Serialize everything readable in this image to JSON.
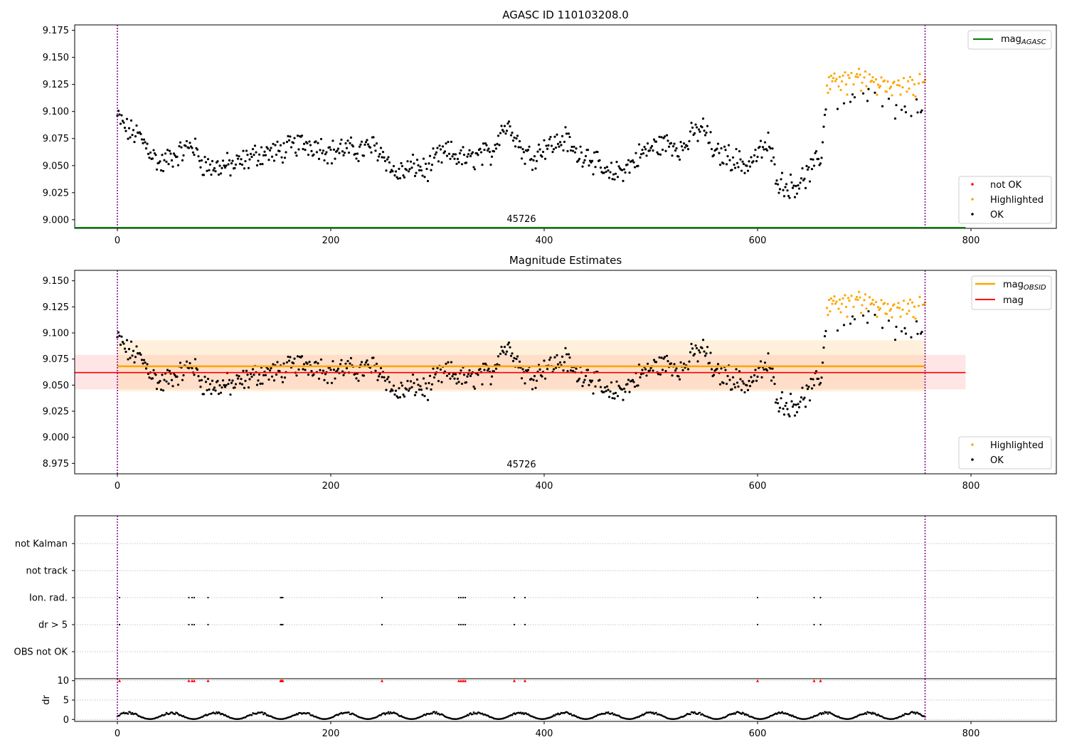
{
  "chart_data": [
    {
      "type": "scatter",
      "title": "AGASC ID 110103208.0",
      "xlabel": "",
      "ylabel": "",
      "xlim": [
        -40,
        880
      ],
      "ylim": [
        8.992,
        9.18
      ],
      "x_ticks": [
        0,
        200,
        400,
        600,
        800
      ],
      "y_ticks": [
        9.0,
        9.025,
        9.05,
        9.075,
        9.1,
        9.125,
        9.15,
        9.175
      ],
      "y_tick_labels": [
        "9.000",
        "9.025",
        "9.050",
        "9.075",
        "9.100",
        "9.125",
        "9.150",
        "9.175"
      ],
      "vlines": [
        0,
        757
      ],
      "obsid_label": "45726",
      "lines": [
        {
          "name": "mag",
          "sub": "AGASC",
          "y": 8.992,
          "x_range": [
            -40,
            795
          ],
          "color": "#008000"
        }
      ],
      "legend_top": {
        "placement": "top-right",
        "entries": [
          {
            "label": "mag",
            "sub": "AGASC",
            "color": "#008000"
          }
        ]
      },
      "legend_bottom": {
        "placement": "bottom-right",
        "entries": [
          {
            "label": "not OK",
            "color": "#ff0000"
          },
          {
            "label": "Highlighted",
            "color": "#ffa500"
          },
          {
            "label": "OK",
            "color": "#000000"
          }
        ]
      }
    },
    {
      "type": "scatter",
      "title": "Magnitude Estimates",
      "xlabel": "",
      "ylabel": "",
      "xlim": [
        -40,
        880
      ],
      "ylim": [
        8.965,
        9.16
      ],
      "x_ticks": [
        0,
        200,
        400,
        600,
        800
      ],
      "y_ticks": [
        8.975,
        9.0,
        9.025,
        9.05,
        9.075,
        9.1,
        9.125,
        9.15
      ],
      "y_tick_labels": [
        "8.975",
        "9.000",
        "9.025",
        "9.050",
        "9.075",
        "9.100",
        "9.125",
        "9.150"
      ],
      "vlines": [
        0,
        757
      ],
      "obsid_label": "45726",
      "bands": [
        {
          "x_range": [
            -40,
            795
          ],
          "y_range": [
            9.046,
            9.079
          ],
          "color": "#ff9999",
          "alpha": 0.25
        },
        {
          "x_range": [
            0,
            757
          ],
          "y_range": [
            9.044,
            9.093
          ],
          "color": "#ffcc88",
          "alpha": 0.3
        }
      ],
      "lines": [
        {
          "name": "mag",
          "sub": "OBSID",
          "y": 9.068,
          "x_range": [
            0,
            757
          ],
          "color": "#ffa500"
        },
        {
          "name": "mag",
          "sub": "",
          "y": 9.062,
          "x_range": [
            -40,
            795
          ],
          "color": "#ff0000"
        }
      ],
      "legend_top": {
        "placement": "top-right",
        "entries": [
          {
            "label": "mag",
            "sub": "OBSID",
            "color": "#ffa500"
          },
          {
            "label": "mag",
            "sub": "",
            "color": "#ff0000"
          }
        ]
      },
      "legend_bottom": {
        "placement": "bottom-right",
        "entries": [
          {
            "label": "Highlighted",
            "color": "#ffa500"
          },
          {
            "label": "OK",
            "color": "#000000"
          }
        ]
      }
    },
    {
      "type": "scatter",
      "title": "",
      "xlim": [
        -40,
        880
      ],
      "vlines": [
        0,
        757
      ],
      "categories": [
        "not Kalman",
        "not track",
        "Ion. rad.",
        "dr > 5",
        "OBS not OK"
      ],
      "flags": {
        "Ion. rad.": [
          2,
          67,
          70,
          72,
          85,
          153,
          154,
          155,
          248,
          320,
          322,
          324,
          326,
          372,
          382,
          600,
          653,
          659
        ],
        "dr > 5": [
          2,
          67,
          70,
          72,
          85,
          153,
          154,
          155,
          248,
          320,
          322,
          324,
          326,
          372,
          382,
          600,
          653,
          659
        ]
      }
    },
    {
      "type": "scatter",
      "title": "",
      "xlim": [
        -40,
        880
      ],
      "ylim": [
        -0.5,
        10.5
      ],
      "ylabel": "dr",
      "y_ticks": [
        0,
        5,
        10
      ],
      "y_tick_labels": [
        "0",
        "5",
        "10"
      ],
      "x_ticks": [
        0,
        200,
        400,
        600,
        800
      ],
      "vlines": [
        0,
        757
      ],
      "n_points": 757,
      "dr_range": [
        0.1,
        2.0
      ],
      "clipped_marker_y": 10,
      "clipped_x": [
        2,
        67,
        70,
        72,
        85,
        153,
        154,
        155,
        248,
        320,
        322,
        324,
        326,
        372,
        382,
        600,
        653,
        659
      ]
    }
  ],
  "mag_profile": {
    "note_x": [
      0,
      10,
      20,
      30,
      40,
      50,
      60,
      70,
      80,
      90,
      100,
      110,
      120,
      130,
      140,
      150,
      160,
      170,
      180,
      190,
      200,
      210,
      220,
      230,
      240,
      250,
      260,
      270,
      280,
      290,
      300,
      310,
      320,
      330,
      340,
      350,
      360,
      370,
      380,
      390,
      400,
      410,
      420,
      430,
      440,
      450,
      460,
      470,
      480,
      490,
      500,
      510,
      520,
      530,
      540,
      550,
      560,
      570,
      580,
      590,
      600,
      610,
      620,
      630,
      640,
      650,
      660,
      665,
      680,
      700,
      720,
      740,
      757
    ],
    "y": [
      9.095,
      9.082,
      9.078,
      9.065,
      9.05,
      9.058,
      9.062,
      9.07,
      9.052,
      9.048,
      9.05,
      9.05,
      9.055,
      9.06,
      9.062,
      9.062,
      9.066,
      9.07,
      9.07,
      9.068,
      9.062,
      9.066,
      9.064,
      9.065,
      9.068,
      9.06,
      9.042,
      9.045,
      9.05,
      9.045,
      9.058,
      9.062,
      9.058,
      9.055,
      9.06,
      9.06,
      9.085,
      9.085,
      9.062,
      9.058,
      9.068,
      9.07,
      9.075,
      9.06,
      9.062,
      9.05,
      9.04,
      9.045,
      9.05,
      9.06,
      9.066,
      9.07,
      9.07,
      9.065,
      9.08,
      9.085,
      9.06,
      9.06,
      9.055,
      9.05,
      9.06,
      9.07,
      9.035,
      9.03,
      9.035,
      9.045,
      9.06,
      9.12,
      9.122,
      9.125,
      9.12,
      9.12,
      9.12
    ],
    "spread": 0.009,
    "orange_from_x": 665,
    "orange_fraction": 0.75
  }
}
